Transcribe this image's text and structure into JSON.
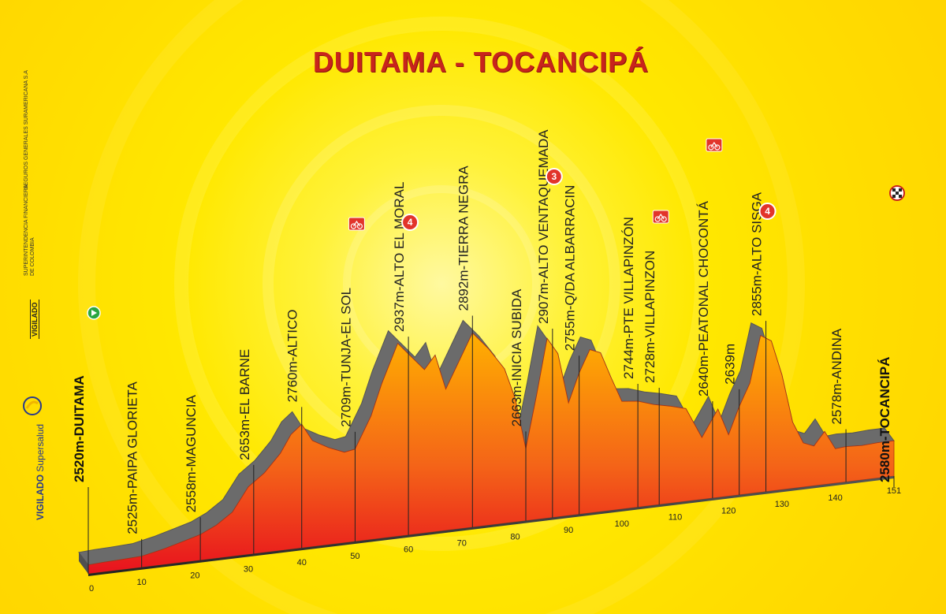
{
  "chart_data": {
    "type": "area",
    "title": "DUITAMA - TOCANCIPÁ",
    "xlabel": "",
    "ylabel": "",
    "xlim": [
      0,
      151
    ],
    "x_ticks": [
      "0",
      "10",
      "20",
      "30",
      "40",
      "50",
      "60",
      "70",
      "80",
      "90",
      "100",
      "110",
      "120",
      "130",
      "140",
      "151"
    ],
    "profile": {
      "x": [
        0,
        3,
        6,
        10,
        14,
        18,
        21,
        24,
        27,
        30,
        33,
        36,
        38,
        40,
        42,
        45,
        48,
        50,
        53,
        55,
        58,
        60,
        63,
        65,
        67,
        70,
        72,
        75,
        78,
        80,
        82,
        84,
        86,
        88,
        90,
        92,
        94,
        96,
        98,
        100,
        103,
        106,
        109,
        112,
        115,
        118,
        120,
        122,
        124,
        126,
        128,
        130,
        132,
        134,
        136,
        138,
        140,
        142,
        145,
        148,
        151
      ],
      "y": [
        2520,
        2522,
        2523,
        2525,
        2535,
        2548,
        2558,
        2575,
        2600,
        2653,
        2680,
        2720,
        2760,
        2780,
        2740,
        2720,
        2705,
        2709,
        2780,
        2850,
        2937,
        2910,
        2870,
        2900,
        2820,
        2892,
        2940,
        2900,
        2850,
        2780,
        2663,
        2780,
        2907,
        2870,
        2755,
        2820,
        2870,
        2860,
        2800,
        2744,
        2740,
        2728,
        2720,
        2710,
        2640,
        2700,
        2639,
        2700,
        2750,
        2855,
        2840,
        2760,
        2650,
        2600,
        2590,
        2620,
        2578,
        2580,
        2578,
        2580,
        2580
      ]
    },
    "waypoints": [
      {
        "km": 0,
        "label": "2520m-DUITAMA",
        "marker": "start"
      },
      {
        "km": 10,
        "label": "2525m-PAIPA GLORIETA",
        "marker": ""
      },
      {
        "km": 21,
        "label": "2558m-MAGUNCIA",
        "marker": ""
      },
      {
        "km": 31,
        "label": "2653m-EL BARNE",
        "marker": ""
      },
      {
        "km": 40,
        "label": "2760m-ALTICO",
        "marker": ""
      },
      {
        "km": 50,
        "label": "2709m-TUNJA-EL SOL",
        "marker": "sprint"
      },
      {
        "km": 60,
        "label": "2937m-ALTO EL MORAL",
        "marker": "4"
      },
      {
        "km": 72,
        "label": "2892m-TIERRA NEGRA",
        "marker": ""
      },
      {
        "km": 82,
        "label": "2663m-INICIA SUBIDA",
        "marker": ""
      },
      {
        "km": 87,
        "label": "2907m-ALTO VENTAQUEMADA",
        "marker": "3"
      },
      {
        "km": 92,
        "label": "2755m-Q/DA ALBARRACIN",
        "marker": ""
      },
      {
        "km": 103,
        "label": "2744m-PTE VILLAPINZÓN",
        "marker": ""
      },
      {
        "km": 107,
        "label": "2728m-VILLAPINZON",
        "marker": "sprint"
      },
      {
        "km": 117,
        "label": "2640m-PEATONAL CHOCONTÁ",
        "marker": "sprint"
      },
      {
        "km": 122,
        "label": "2639m",
        "marker": ""
      },
      {
        "km": 127,
        "label": "2855m-ALTO SISGA",
        "marker": "4"
      },
      {
        "km": 142,
        "label": "2578m-ANDINA",
        "marker": ""
      },
      {
        "km": 151,
        "label": "2580m-TOCANCIPÁ",
        "marker": "finish"
      }
    ]
  },
  "sidebar": {
    "org_line1": "SEGUROS GENERALES SURAMERICANA S.A",
    "org_line2": "SUPERINTENDENCIA FINANCIERA",
    "org_line3": "DE COLOMBIA",
    "vigilado": "VIGILADO",
    "supersalud_prefix": "VIGILADO",
    "supersalud_name": "Supersalud"
  },
  "colors": {
    "title": "#c8241c",
    "profile_top": "#ffb000",
    "profile_bottom": "#e8121e",
    "profile_side": "#6b6b6b",
    "marker_red": "#e2342a",
    "marker_green": "#2aa640"
  }
}
